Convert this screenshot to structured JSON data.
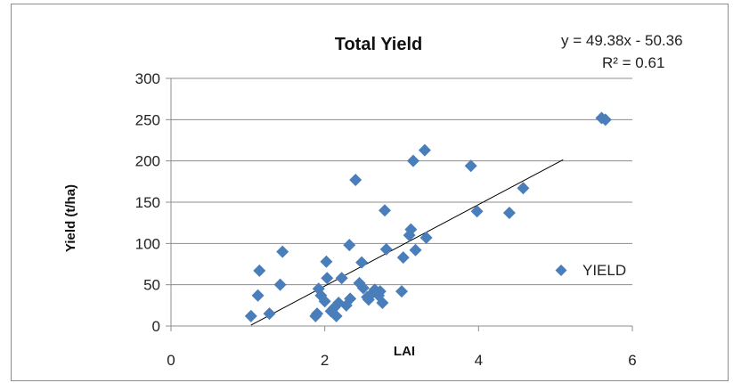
{
  "chart_data": {
    "type": "scatter",
    "title": "Total Yield",
    "xlabel": "LAI",
    "ylabel": "Yield (t/ha)",
    "xlim": [
      0,
      6
    ],
    "ylim": [
      0,
      300
    ],
    "x_ticks": [
      "0",
      "2",
      "4",
      "6"
    ],
    "y_ticks": [
      "0",
      "50",
      "100",
      "150",
      "200",
      "250",
      "300"
    ],
    "grid": "horizontal",
    "legend_position": "right",
    "marker_color": "#4a7ebb",
    "trendline": {
      "slope": 49.38,
      "intercept": -50.36,
      "x_range": [
        1.04,
        5.1
      ],
      "equation_text": "y = 49.38x - 50.36",
      "r2_text": "R² = 0.61",
      "color": "#000000"
    },
    "series": [
      {
        "name": "YIELD",
        "points": [
          [
            1.04,
            12
          ],
          [
            1.13,
            37
          ],
          [
            1.15,
            67
          ],
          [
            1.28,
            15
          ],
          [
            1.42,
            50
          ],
          [
            1.45,
            90
          ],
          [
            1.88,
            12
          ],
          [
            1.9,
            15
          ],
          [
            1.92,
            45
          ],
          [
            1.95,
            37
          ],
          [
            2.0,
            30
          ],
          [
            2.02,
            78
          ],
          [
            2.03,
            58
          ],
          [
            2.08,
            18
          ],
          [
            2.12,
            22
          ],
          [
            2.15,
            12
          ],
          [
            2.18,
            28
          ],
          [
            2.22,
            58
          ],
          [
            2.28,
            25
          ],
          [
            2.32,
            98
          ],
          [
            2.33,
            33
          ],
          [
            2.4,
            177
          ],
          [
            2.45,
            52
          ],
          [
            2.48,
            77
          ],
          [
            2.5,
            46
          ],
          [
            2.55,
            35
          ],
          [
            2.57,
            32
          ],
          [
            2.62,
            40
          ],
          [
            2.65,
            44
          ],
          [
            2.7,
            37
          ],
          [
            2.72,
            42
          ],
          [
            2.75,
            28
          ],
          [
            2.78,
            140
          ],
          [
            2.8,
            93
          ],
          [
            3.0,
            42
          ],
          [
            3.02,
            83
          ],
          [
            3.1,
            110
          ],
          [
            3.12,
            117
          ],
          [
            3.15,
            200
          ],
          [
            3.18,
            92
          ],
          [
            3.3,
            213
          ],
          [
            3.32,
            107
          ],
          [
            3.9,
            194
          ],
          [
            3.98,
            139
          ],
          [
            4.4,
            137
          ],
          [
            4.58,
            167
          ],
          [
            5.6,
            252
          ],
          [
            5.65,
            250
          ]
        ]
      }
    ]
  }
}
